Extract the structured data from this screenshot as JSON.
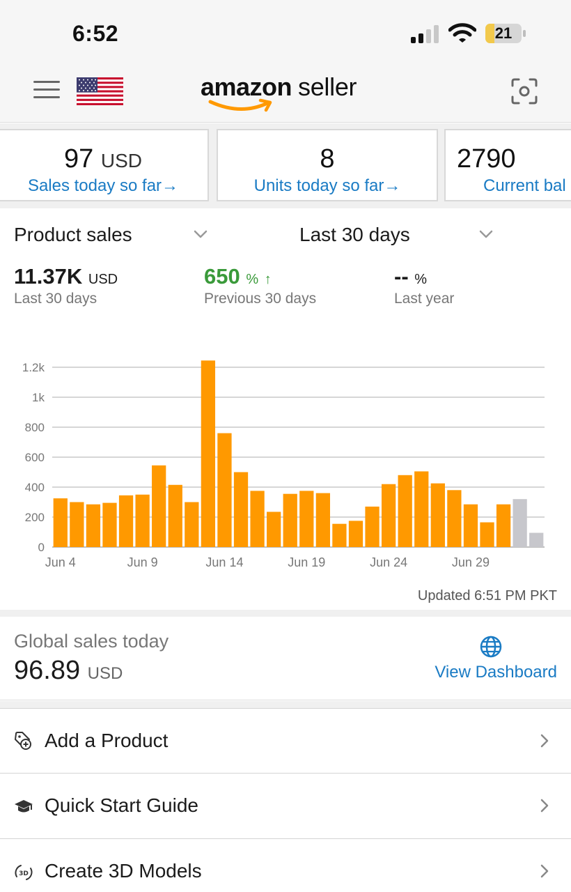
{
  "status_bar": {
    "time": "6:52",
    "battery": "21"
  },
  "header": {
    "brand_left": "amazon",
    "brand_right": "seller"
  },
  "cards": [
    {
      "value": "97",
      "unit": "USD",
      "link": "Sales today so far"
    },
    {
      "value": "8",
      "unit": "",
      "link": "Units today so far"
    },
    {
      "value": "2790",
      "unit": "",
      "link": "Current bal"
    }
  ],
  "sales": {
    "metric_select": "Product sales",
    "period_select": "Last 30 days",
    "stats": [
      {
        "value": "11.37K",
        "unit": "USD",
        "label": "Last 30 days"
      },
      {
        "value": "650",
        "unit": "%",
        "label": "Previous 30 days",
        "trend": "up"
      },
      {
        "value": "--",
        "unit": "%",
        "label": "Last year"
      }
    ],
    "updated": "Updated 6:51 PM PKT"
  },
  "chart_data": {
    "type": "bar",
    "x_tick_labels": [
      "Jun 4",
      "Jun 9",
      "Jun 14",
      "Jun 19",
      "Jun 24",
      "Jun 29"
    ],
    "y_tick_labels": [
      "0",
      "200",
      "400",
      "600",
      "800",
      "1k",
      "1.2k"
    ],
    "ylim": [
      0,
      1200
    ],
    "categories": [
      "Jun 4",
      "Jun 5",
      "Jun 6",
      "Jun 7",
      "Jun 8",
      "Jun 9",
      "Jun 10",
      "Jun 11",
      "Jun 12",
      "Jun 13",
      "Jun 14",
      "Jun 15",
      "Jun 16",
      "Jun 17",
      "Jun 18",
      "Jun 19",
      "Jun 20",
      "Jun 21",
      "Jun 22",
      "Jun 23",
      "Jun 24",
      "Jun 25",
      "Jun 26",
      "Jun 27",
      "Jun 28",
      "Jun 29",
      "Jun 30",
      "Jul 1",
      "Jul 2",
      "Jul 3"
    ],
    "values": [
      325,
      300,
      285,
      295,
      345,
      350,
      545,
      415,
      300,
      1245,
      760,
      500,
      375,
      235,
      355,
      375,
      360,
      155,
      175,
      270,
      420,
      480,
      505,
      425,
      380,
      285,
      165,
      285,
      320,
      95
    ],
    "bar_colors": [
      "#ff9900",
      "#ff9900",
      "#ff9900",
      "#ff9900",
      "#ff9900",
      "#ff9900",
      "#ff9900",
      "#ff9900",
      "#ff9900",
      "#ff9900",
      "#ff9900",
      "#ff9900",
      "#ff9900",
      "#ff9900",
      "#ff9900",
      "#ff9900",
      "#ff9900",
      "#ff9900",
      "#ff9900",
      "#ff9900",
      "#ff9900",
      "#ff9900",
      "#ff9900",
      "#ff9900",
      "#ff9900",
      "#ff9900",
      "#ff9900",
      "#ff9900",
      "#c7c7cc",
      "#c7c7cc"
    ],
    "grid": true
  },
  "global": {
    "label": "Global sales today",
    "value": "96.89",
    "unit": "USD",
    "link": "View Dashboard"
  },
  "menu": [
    {
      "label": "Add a Product",
      "icon": "tag-plus-icon"
    },
    {
      "label": "Quick Start Guide",
      "icon": "graduation-cap-icon"
    },
    {
      "label": "Create 3D Models",
      "icon": "3d-rotate-icon"
    }
  ],
  "colors": {
    "accent": "#ff9900",
    "link": "#1a7bc4",
    "positive": "#3a9a3a"
  }
}
